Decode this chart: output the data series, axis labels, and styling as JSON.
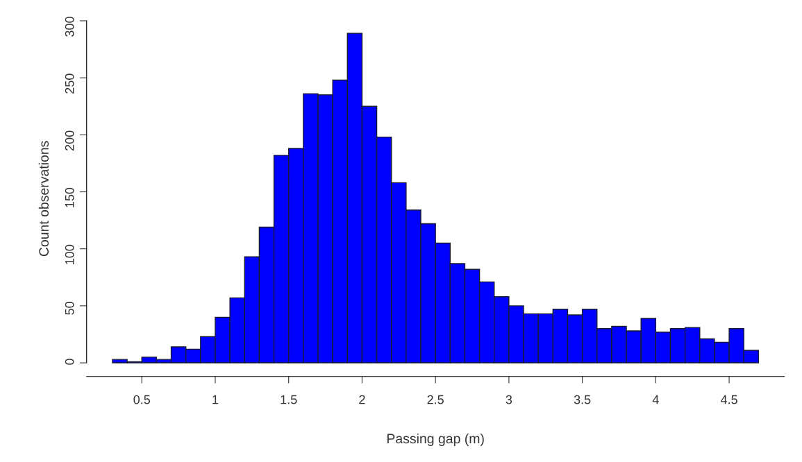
{
  "chart_data": {
    "type": "histogram",
    "xlabel": "Passing gap (m)",
    "ylabel": "Count observations",
    "bins": [
      0.3,
      0.4,
      0.5,
      0.6,
      0.7,
      0.8,
      0.9,
      1.0,
      1.1,
      1.2,
      1.3,
      1.4,
      1.5,
      1.6,
      1.7,
      1.8,
      1.9,
      2.0,
      2.1,
      2.2,
      2.3,
      2.4,
      2.5,
      2.6,
      2.7,
      2.8,
      2.9,
      3.0,
      3.1,
      3.2,
      3.3,
      3.4,
      3.5,
      3.6,
      3.7,
      3.8,
      3.9,
      4.0,
      4.1,
      4.2,
      4.3,
      4.4,
      4.5,
      4.6,
      4.7
    ],
    "values": [
      3,
      1,
      5,
      3,
      14,
      12,
      23,
      40,
      57,
      93,
      119,
      182,
      188,
      236,
      235,
      248,
      289,
      225,
      198,
      158,
      134,
      122,
      105,
      87,
      82,
      71,
      58,
      50,
      43,
      43,
      47,
      42,
      47,
      30,
      32,
      28,
      39,
      27,
      30,
      31,
      21,
      18,
      30,
      11
    ],
    "color": "#0000ff",
    "xlim": [
      0.124,
      4.876
    ],
    "xticks": [
      0.5,
      1,
      1.5,
      2,
      2.5,
      3,
      3.5,
      4,
      4.5
    ],
    "ylim": [
      -12,
      300
    ],
    "yticks": [
      0,
      50,
      100,
      150,
      200,
      250,
      300
    ],
    "grid": false
  }
}
